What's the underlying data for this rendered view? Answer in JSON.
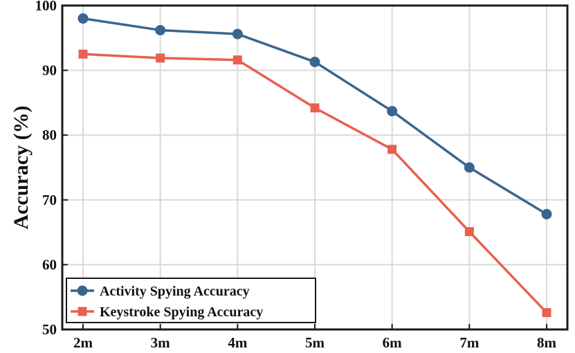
{
  "chart_data": {
    "type": "line",
    "categories": [
      "2m",
      "3m",
      "4m",
      "5m",
      "6m",
      "7m",
      "8m"
    ],
    "ylabel": "Accuracy (%)",
    "xlabel": "",
    "ylim": [
      50,
      100
    ],
    "yticks": [
      50,
      60,
      70,
      80,
      90,
      100
    ],
    "grid": true,
    "legend_position": "bottom-left",
    "series": [
      {
        "name": "Activity Spying Accuracy",
        "values": [
          98.0,
          96.2,
          95.6,
          91.3,
          83.7,
          75.0,
          67.8
        ],
        "color": "#3a6590",
        "marker": "circle"
      },
      {
        "name": "Keystroke Spying Accuracy",
        "values": [
          92.5,
          91.9,
          91.6,
          84.2,
          77.8,
          65.1,
          52.6
        ],
        "color": "#e8604f",
        "marker": "square"
      }
    ]
  }
}
